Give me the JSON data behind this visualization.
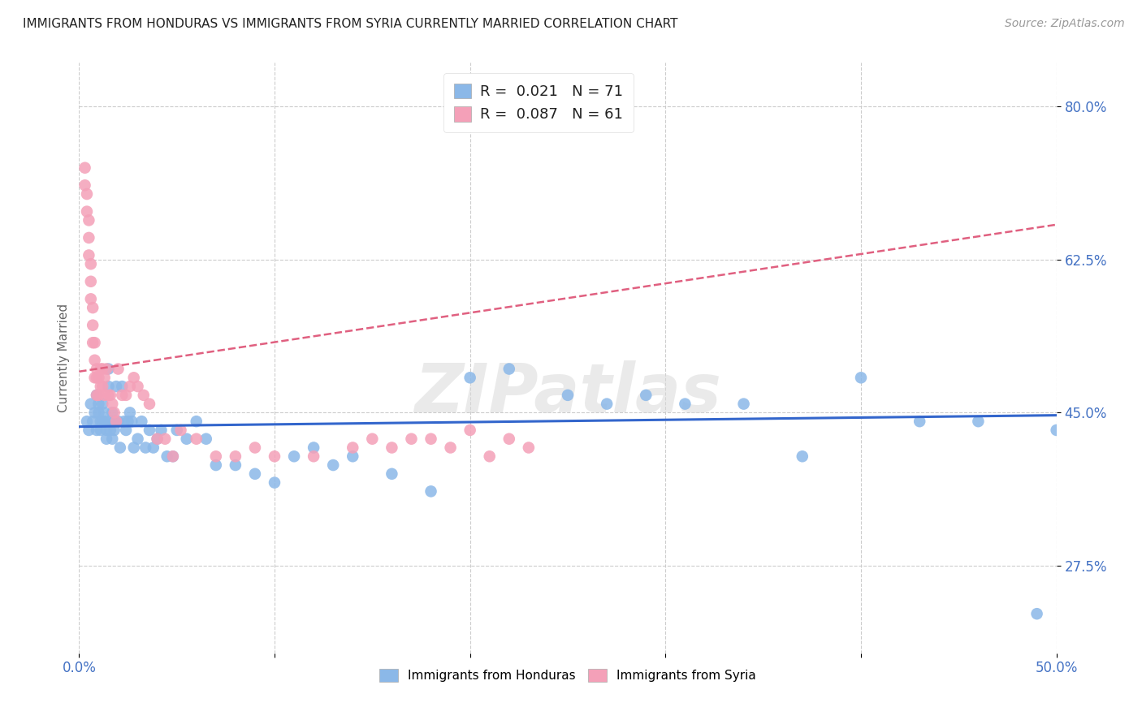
{
  "title": "IMMIGRANTS FROM HONDURAS VS IMMIGRANTS FROM SYRIA CURRENTLY MARRIED CORRELATION CHART",
  "source": "Source: ZipAtlas.com",
  "ylabel": "Currently Married",
  "x_min": 0.0,
  "x_max": 0.5,
  "y_min": 0.175,
  "y_max": 0.85,
  "x_ticks": [
    0.0,
    0.1,
    0.2,
    0.3,
    0.4,
    0.5
  ],
  "x_tick_labels": [
    "0.0%",
    "",
    "",
    "",
    "",
    "50.0%"
  ],
  "y_ticks": [
    0.275,
    0.45,
    0.625,
    0.8
  ],
  "y_tick_labels": [
    "27.5%",
    "45.0%",
    "62.5%",
    "80.0%"
  ],
  "legend_R_honduras": "0.021",
  "legend_N_honduras": "71",
  "legend_R_syria": "0.087",
  "legend_N_syria": "61",
  "color_honduras": "#8BB8E8",
  "color_syria": "#F4A0B8",
  "color_honduras_line": "#3366CC",
  "color_syria_line": "#E06080",
  "watermark": "ZIPatlas",
  "honduras_trend_x": [
    0.0,
    0.5
  ],
  "honduras_trend_y": [
    0.434,
    0.447
  ],
  "syria_trend_x": [
    0.0,
    0.5
  ],
  "syria_trend_y": [
    0.497,
    0.665
  ],
  "honduras_x": [
    0.004,
    0.005,
    0.006,
    0.007,
    0.008,
    0.009,
    0.009,
    0.01,
    0.01,
    0.011,
    0.011,
    0.012,
    0.012,
    0.013,
    0.013,
    0.014,
    0.014,
    0.015,
    0.015,
    0.016,
    0.016,
    0.017,
    0.017,
    0.018,
    0.018,
    0.019,
    0.02,
    0.021,
    0.022,
    0.023,
    0.024,
    0.025,
    0.026,
    0.027,
    0.028,
    0.03,
    0.032,
    0.034,
    0.036,
    0.038,
    0.04,
    0.042,
    0.045,
    0.048,
    0.05,
    0.055,
    0.06,
    0.065,
    0.07,
    0.08,
    0.09,
    0.1,
    0.11,
    0.12,
    0.13,
    0.14,
    0.16,
    0.18,
    0.2,
    0.22,
    0.25,
    0.27,
    0.29,
    0.31,
    0.34,
    0.37,
    0.4,
    0.43,
    0.46,
    0.49,
    0.5
  ],
  "honduras_y": [
    0.44,
    0.43,
    0.46,
    0.44,
    0.45,
    0.43,
    0.47,
    0.45,
    0.46,
    0.44,
    0.43,
    0.44,
    0.46,
    0.45,
    0.44,
    0.43,
    0.42,
    0.5,
    0.48,
    0.44,
    0.43,
    0.45,
    0.42,
    0.44,
    0.43,
    0.48,
    0.44,
    0.41,
    0.48,
    0.44,
    0.43,
    0.44,
    0.45,
    0.44,
    0.41,
    0.42,
    0.44,
    0.41,
    0.43,
    0.41,
    0.42,
    0.43,
    0.4,
    0.4,
    0.43,
    0.42,
    0.44,
    0.42,
    0.39,
    0.39,
    0.38,
    0.37,
    0.4,
    0.41,
    0.39,
    0.4,
    0.38,
    0.36,
    0.49,
    0.5,
    0.47,
    0.46,
    0.47,
    0.46,
    0.46,
    0.4,
    0.49,
    0.44,
    0.44,
    0.22,
    0.43
  ],
  "syria_x": [
    0.003,
    0.003,
    0.004,
    0.004,
    0.005,
    0.005,
    0.005,
    0.006,
    0.006,
    0.006,
    0.007,
    0.007,
    0.007,
    0.008,
    0.008,
    0.008,
    0.009,
    0.009,
    0.009,
    0.01,
    0.01,
    0.011,
    0.011,
    0.012,
    0.012,
    0.013,
    0.013,
    0.014,
    0.015,
    0.016,
    0.017,
    0.018,
    0.019,
    0.02,
    0.022,
    0.024,
    0.026,
    0.028,
    0.03,
    0.033,
    0.036,
    0.04,
    0.044,
    0.048,
    0.052,
    0.06,
    0.07,
    0.08,
    0.09,
    0.1,
    0.12,
    0.14,
    0.15,
    0.16,
    0.17,
    0.18,
    0.19,
    0.2,
    0.21,
    0.22,
    0.23
  ],
  "syria_y": [
    0.73,
    0.71,
    0.7,
    0.68,
    0.67,
    0.65,
    0.63,
    0.62,
    0.6,
    0.58,
    0.57,
    0.55,
    0.53,
    0.53,
    0.51,
    0.49,
    0.5,
    0.49,
    0.47,
    0.49,
    0.47,
    0.5,
    0.48,
    0.48,
    0.5,
    0.47,
    0.49,
    0.5,
    0.47,
    0.47,
    0.46,
    0.45,
    0.44,
    0.5,
    0.47,
    0.47,
    0.48,
    0.49,
    0.48,
    0.47,
    0.46,
    0.42,
    0.42,
    0.4,
    0.43,
    0.42,
    0.4,
    0.4,
    0.41,
    0.4,
    0.4,
    0.41,
    0.42,
    0.41,
    0.42,
    0.42,
    0.41,
    0.43,
    0.4,
    0.42,
    0.41
  ]
}
